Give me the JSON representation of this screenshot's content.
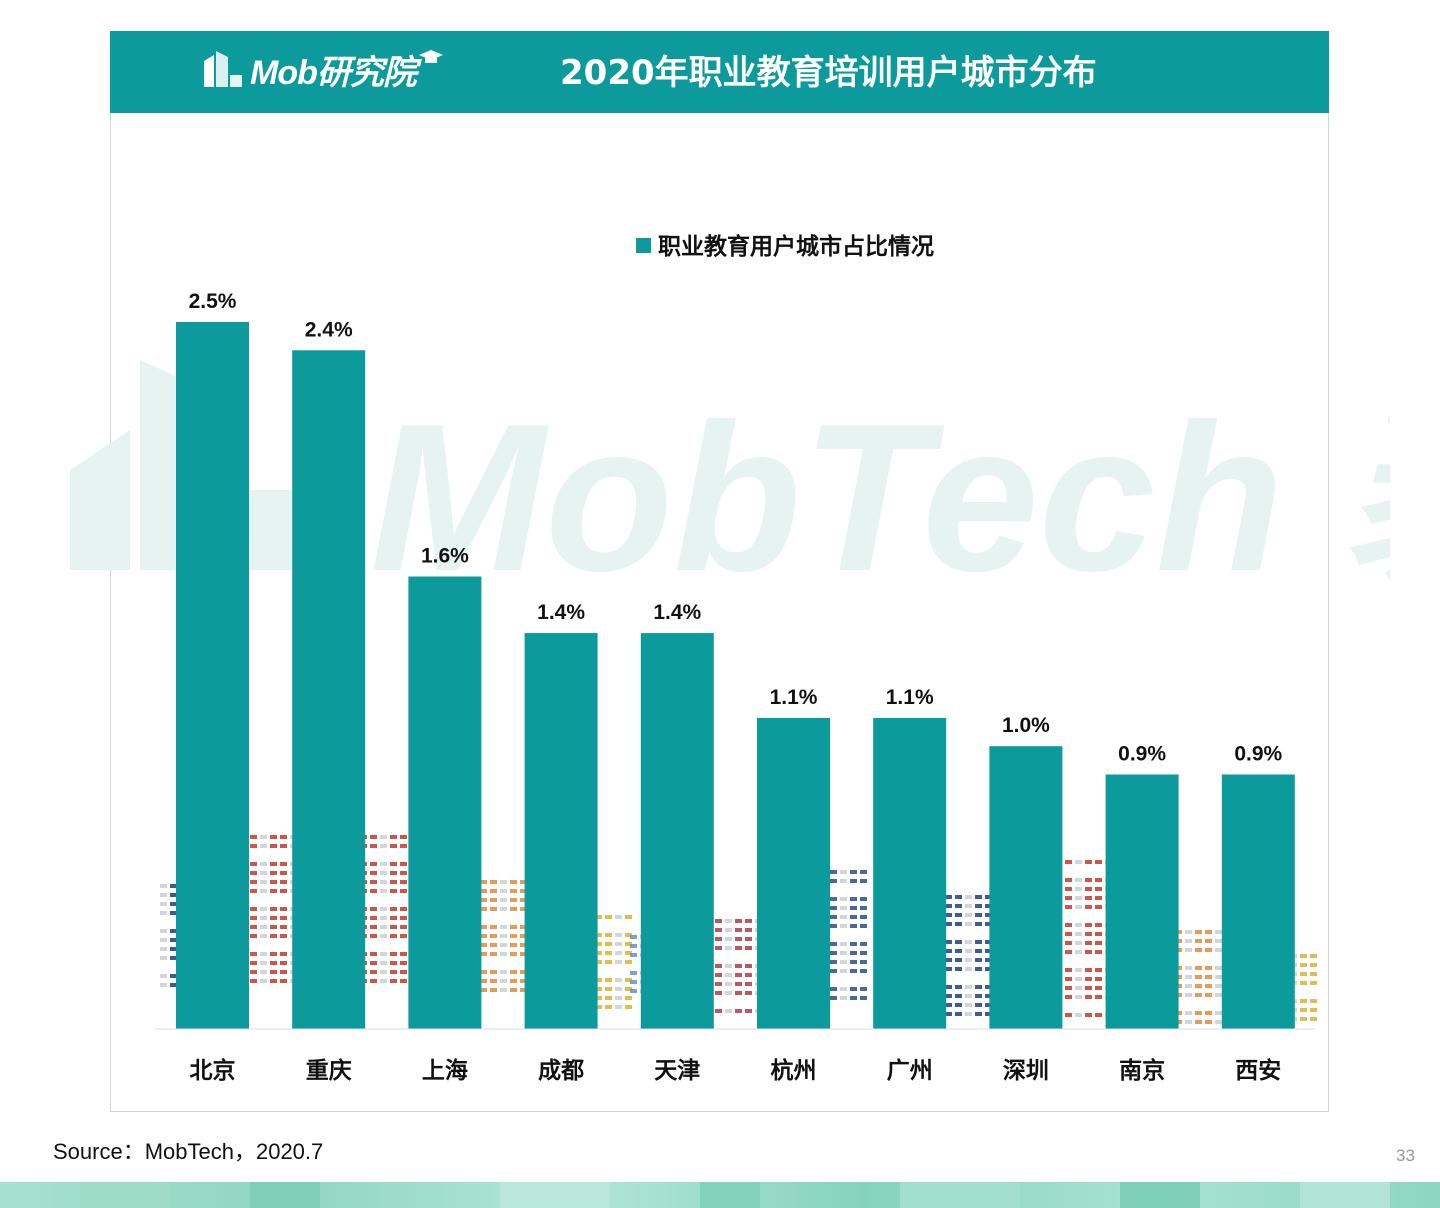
{
  "header": {
    "logo_text": "Mob研究院",
    "title": "2020年职业教育培训用户城市分布"
  },
  "watermark_text": "MobTech 袤博",
  "chart_data": {
    "type": "bar",
    "title": "",
    "legend": "职业教育用户城市占比情况",
    "legend_position": "top-center",
    "categories": [
      "北京",
      "重庆",
      "上海",
      "成都",
      "天津",
      "杭州",
      "广州",
      "深圳",
      "南京",
      "西安"
    ],
    "values": [
      2.5,
      2.4,
      1.6,
      1.4,
      1.4,
      1.1,
      1.1,
      1.0,
      0.9,
      0.9
    ],
    "value_labels": [
      "2.5%",
      "2.4%",
      "1.6%",
      "1.4%",
      "1.4%",
      "1.1%",
      "1.1%",
      "1.0%",
      "0.9%",
      "0.9%"
    ],
    "xlabel": "",
    "ylabel": "",
    "ylim": [
      0,
      2.5
    ],
    "grid": false,
    "color": "#0c9a9c"
  },
  "footer": {
    "source": "Source：MobTech，2020.7",
    "page_number": "33"
  }
}
